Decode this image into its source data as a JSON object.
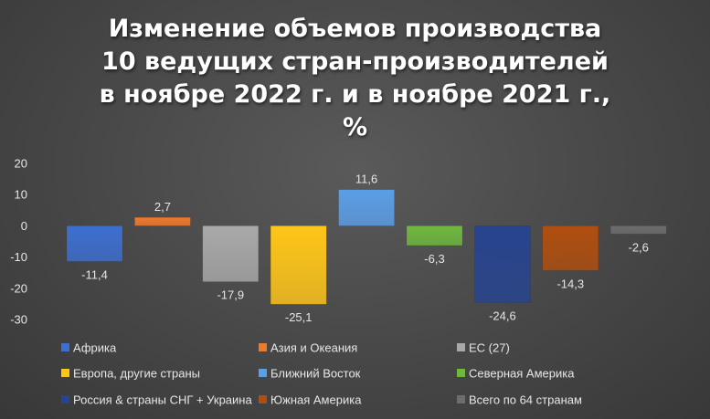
{
  "chart_data": {
    "type": "bar",
    "title_lines": [
      "Изменение объемов производства",
      "10 ведущих стран-производителей",
      "в ноябре 2022 г. и в ноябре 2021 г.,",
      "%"
    ],
    "ylim": [
      -30,
      20
    ],
    "yticks": [
      "20",
      "10",
      "0",
      "-10",
      "-20",
      "-30"
    ],
    "grid": false,
    "legend_position": "bottom",
    "series": [
      {
        "name": "Африка",
        "value": -11.4,
        "label": "-11,4",
        "color": "#3d6fd0"
      },
      {
        "name": "Азия и Океания",
        "value": 2.7,
        "label": "2,7",
        "color": "#ee7a2c"
      },
      {
        "name": "ЕС (27)",
        "value": -17.9,
        "label": "-17,9",
        "color": "#a9a9a9"
      },
      {
        "name": "Европа, другие страны",
        "value": -25.1,
        "label": "-25,1",
        "color": "#ffc619"
      },
      {
        "name": "Ближний Восток",
        "value": 11.6,
        "label": "11,6",
        "color": "#5b9ee6"
      },
      {
        "name": "Северная Америка",
        "value": -6.3,
        "label": "-6,3",
        "color": "#6fb83e"
      },
      {
        "name": "Россия & страны СНГ + Украина",
        "value": -24.6,
        "label": "-24,6",
        "color": "#27448f"
      },
      {
        "name": "Южная Америка",
        "value": -14.3,
        "label": "-14,3",
        "color": "#b04e0f"
      },
      {
        "name": "Всего по 64 странам",
        "value": -2.6,
        "label": "-2,6",
        "color": "#6d6d6d"
      }
    ]
  }
}
